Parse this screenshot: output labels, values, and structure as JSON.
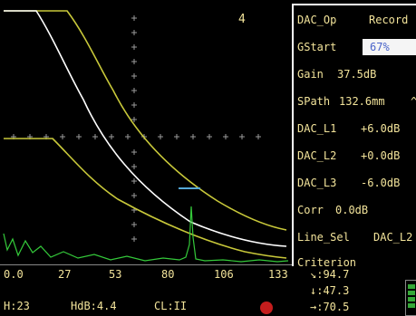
{
  "channel": "4",
  "menu": [
    {
      "key": "DAC_Op",
      "value": "Record"
    },
    {
      "key": "GStart",
      "value": "67%"
    },
    {
      "key": "Gain",
      "value": "37.5dB"
    },
    {
      "key": "SPath",
      "value": "132.6mm"
    },
    {
      "key": "DAC_L1",
      "value": "+6.0dB"
    },
    {
      "key": "DAC_L2",
      "value": "+0.0dB"
    },
    {
      "key": "DAC_L3",
      "value": "-6.0dB"
    },
    {
      "key": "Corr",
      "value": "0.0dB"
    },
    {
      "key": "Line_Sel",
      "value": "DAC_L2"
    },
    {
      "key": "Criterion",
      "value": ""
    }
  ],
  "scale_marker": "^",
  "axis_ticks": [
    "0.0",
    "27",
    "53",
    "80",
    "106",
    "133"
  ],
  "status": {
    "h": "H:23",
    "hdb": "HdB:4.4",
    "cl": "CL:II"
  },
  "readouts": [
    {
      "icon": "↘",
      "value": ":94.7"
    },
    {
      "icon": "↓",
      "value": ":47.3"
    },
    {
      "icon": "→",
      "value": ":70.5"
    }
  ],
  "colors": {
    "text": "#f2e39a",
    "dac_curve": "#c8c83a",
    "ref_curve": "#ffffff",
    "signal": "#34c93a",
    "gate": "#55a8d6",
    "record": "#c41d1d"
  }
}
